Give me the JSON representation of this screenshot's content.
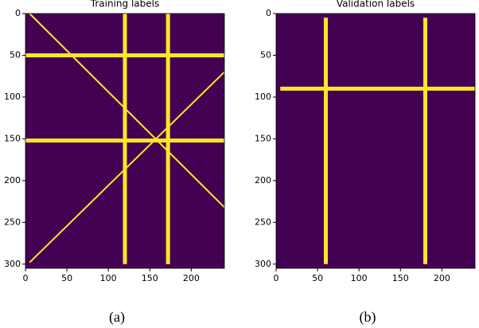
{
  "chart_data": [
    {
      "type": "image",
      "title": "Training labels",
      "caption": "(a)",
      "background": "#440154",
      "color": "#fde725",
      "xlim": [
        0,
        240
      ],
      "ylim": [
        0,
        305
      ],
      "xticks": [
        0,
        50,
        100,
        150,
        200
      ],
      "yticks": [
        0,
        50,
        100,
        150,
        200,
        250,
        300
      ],
      "segments": [
        {
          "x": [
            0,
            240
          ],
          "y": [
            50,
            50
          ]
        },
        {
          "x": [
            0,
            240
          ],
          "y": [
            152,
            152
          ]
        },
        {
          "x": [
            120,
            120
          ],
          "y": [
            0,
            300
          ]
        },
        {
          "x": [
            172,
            172
          ],
          "y": [
            0,
            300
          ]
        },
        {
          "x": [
            5,
            240
          ],
          "y": [
            0,
            232
          ]
        },
        {
          "x": [
            5,
            240
          ],
          "y": [
            298,
            70
          ]
        }
      ]
    },
    {
      "type": "image",
      "title": "Validation labels",
      "caption": "(b)",
      "background": "#440154",
      "color": "#fde725",
      "xlim": [
        0,
        240
      ],
      "ylim": [
        0,
        305
      ],
      "xticks": [
        0,
        50,
        100,
        150,
        200
      ],
      "yticks": [
        0,
        50,
        100,
        150,
        200,
        250,
        300
      ],
      "segments": [
        {
          "x": [
            5,
            240
          ],
          "y": [
            90,
            90
          ]
        },
        {
          "x": [
            60,
            60
          ],
          "y": [
            5,
            300
          ]
        },
        {
          "x": [
            180,
            180
          ],
          "y": [
            5,
            300
          ]
        }
      ]
    }
  ]
}
